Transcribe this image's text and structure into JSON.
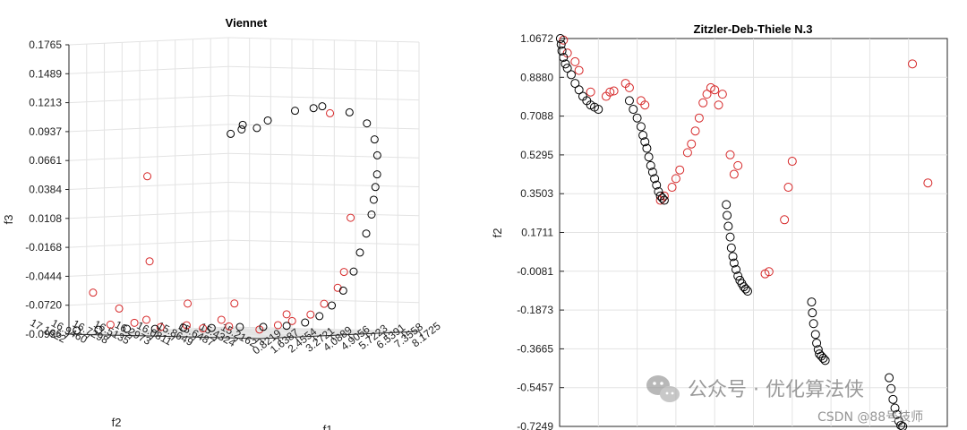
{
  "chart_data": [
    {
      "type": "scatter",
      "projection": "3d",
      "title": "Viennet",
      "xlabel": "f1",
      "ylabel": "f2",
      "zlabel": "f3",
      "grid": true,
      "x_ticks": [
        "0.8219",
        "1.6387",
        "2.4554",
        "3.2721",
        "4.0889",
        "4.9056",
        "5.7223",
        "6.5391",
        "7.3558",
        "8.1725"
      ],
      "y_ticks": [
        "15.2162",
        "15.4324",
        "15.6487",
        "15.8649",
        "16.0811",
        "16.2973",
        "16.5135",
        "16.7298",
        "16.9460",
        "17.1622"
      ],
      "z_ticks": [
        "-0.0996",
        "-0.0720",
        "-0.0444",
        "-0.0168",
        "0.0108",
        "0.0384",
        "0.0661",
        "0.0937",
        "0.1213",
        "0.1489",
        "0.1765"
      ],
      "xlim": [
        0.8219,
        8.1725
      ],
      "ylim": [
        15.2162,
        17.1622
      ],
      "zlim": [
        -0.0996,
        0.1765
      ],
      "series": [
        {
          "color": "#d62728",
          "points": [
            [
              1.1,
              16.8,
              -0.09
            ],
            [
              1.3,
              16.6,
              -0.088
            ],
            [
              1.6,
              16.4,
              -0.092
            ],
            [
              1.9,
              16.2,
              -0.09
            ],
            [
              2.2,
              16.1,
              -0.093
            ],
            [
              2.5,
              15.9,
              -0.091
            ],
            [
              3.0,
              15.7,
              -0.094
            ],
            [
              3.4,
              15.6,
              -0.09
            ],
            [
              1.2,
              17.0,
              -0.06
            ],
            [
              1.5,
              16.8,
              -0.075
            ],
            [
              2.4,
              16.3,
              -0.07
            ],
            [
              2.0,
              16.6,
              -0.03
            ],
            [
              3.2,
              16.0,
              -0.07
            ],
            [
              2.8,
              16.8,
              0.05
            ],
            [
              5.8,
              15.6,
              0.11
            ],
            [
              6.3,
              15.5,
              0.01
            ],
            [
              3.6,
              15.5,
              -0.086
            ],
            [
              4.0,
              15.4,
              -0.08
            ],
            [
              4.4,
              15.35,
              -0.07
            ],
            [
              4.8,
              15.3,
              -0.055
            ],
            [
              5.0,
              15.28,
              -0.04
            ],
            [
              1.4,
              16.5,
              -0.085
            ],
            [
              2.6,
              16.0,
              -0.085
            ],
            [
              3.8,
              15.6,
              -0.08
            ]
          ]
        },
        {
          "color": "#000000",
          "points": [
            [
              0.9,
              17.1,
              -0.096
            ],
            [
              1.0,
              16.9,
              -0.095
            ],
            [
              1.4,
              16.7,
              -0.094
            ],
            [
              1.8,
              16.5,
              -0.094
            ],
            [
              2.2,
              16.3,
              -0.093
            ],
            [
              2.6,
              16.1,
              -0.093
            ],
            [
              3.0,
              15.9,
              -0.092
            ],
            [
              3.4,
              15.75,
              -0.092
            ],
            [
              3.8,
              15.6,
              -0.091
            ],
            [
              4.2,
              15.5,
              -0.088
            ],
            [
              4.5,
              15.42,
              -0.082
            ],
            [
              4.8,
              15.36,
              -0.072
            ],
            [
              5.1,
              15.31,
              -0.058
            ],
            [
              5.4,
              15.27,
              -0.04
            ],
            [
              5.6,
              15.25,
              -0.022
            ],
            [
              5.8,
              15.23,
              -0.004
            ],
            [
              6.0,
              15.22,
              0.014
            ],
            [
              6.1,
              15.22,
              0.028
            ],
            [
              6.2,
              15.225,
              0.04
            ],
            [
              6.3,
              15.23,
              0.052
            ],
            [
              6.4,
              15.25,
              0.07
            ],
            [
              6.5,
              15.3,
              0.085
            ],
            [
              6.6,
              15.4,
              0.1
            ],
            [
              6.7,
              15.6,
              0.11
            ],
            [
              6.8,
              15.9,
              0.115
            ],
            [
              6.9,
              16.2,
              0.11
            ],
            [
              7.0,
              16.5,
              0.1
            ],
            [
              7.2,
              16.8,
              0.095
            ],
            [
              7.6,
              16.9,
              0.09
            ],
            [
              8.0,
              17.1,
              0.085
            ],
            [
              7.4,
              16.7,
              0.092
            ],
            [
              6.85,
              16.0,
              0.113
            ]
          ]
        }
      ]
    },
    {
      "type": "scatter",
      "title": "Zitzler-Deb-Thiele N.3",
      "xlabel": "",
      "ylabel": "f2",
      "grid": true,
      "xlim": [
        0,
        1
      ],
      "ylim": [
        -0.7249,
        1.0672
      ],
      "y_ticks": [
        "-0.7249",
        "-0.5457",
        "-0.3665",
        "-0.1873",
        "-0.0081",
        "0.1711",
        "0.3503",
        "0.5295",
        "0.7088",
        "0.8880",
        "1.0672"
      ],
      "series": [
        {
          "color": "#d62728",
          "points": [
            [
              0.01,
              1.06
            ],
            [
              0.02,
              1.0
            ],
            [
              0.04,
              0.96
            ],
            [
              0.05,
              0.92
            ],
            [
              0.08,
              0.82
            ],
            [
              0.12,
              0.8
            ],
            [
              0.13,
              0.82
            ],
            [
              0.14,
              0.825
            ],
            [
              0.17,
              0.86
            ],
            [
              0.18,
              0.84
            ],
            [
              0.21,
              0.78
            ],
            [
              0.22,
              0.76
            ],
            [
              0.26,
              0.32
            ],
            [
              0.27,
              0.34
            ],
            [
              0.29,
              0.38
            ],
            [
              0.3,
              0.42
            ],
            [
              0.31,
              0.46
            ],
            [
              0.33,
              0.54
            ],
            [
              0.34,
              0.58
            ],
            [
              0.35,
              0.64
            ],
            [
              0.36,
              0.7
            ],
            [
              0.37,
              0.77
            ],
            [
              0.38,
              0.81
            ],
            [
              0.39,
              0.84
            ],
            [
              0.4,
              0.83
            ],
            [
              0.41,
              0.76
            ],
            [
              0.42,
              0.81
            ],
            [
              0.44,
              0.53
            ],
            [
              0.45,
              0.44
            ],
            [
              0.46,
              0.48
            ],
            [
              0.53,
              -0.02
            ],
            [
              0.54,
              -0.01
            ],
            [
              0.58,
              0.23
            ],
            [
              0.59,
              0.38
            ],
            [
              0.6,
              0.5
            ],
            [
              0.91,
              0.95
            ],
            [
              0.95,
              0.4
            ]
          ]
        },
        {
          "color": "#000000",
          "points": [
            [
              0.002,
              1.067
            ],
            [
              0.004,
              1.04
            ],
            [
              0.006,
              1.01
            ],
            [
              0.01,
              0.98
            ],
            [
              0.015,
              0.95
            ],
            [
              0.02,
              0.93
            ],
            [
              0.03,
              0.9
            ],
            [
              0.04,
              0.86
            ],
            [
              0.05,
              0.83
            ],
            [
              0.06,
              0.8
            ],
            [
              0.07,
              0.78
            ],
            [
              0.08,
              0.76
            ],
            [
              0.09,
              0.75
            ],
            [
              0.1,
              0.74
            ],
            [
              0.18,
              0.78
            ],
            [
              0.19,
              0.74
            ],
            [
              0.2,
              0.7
            ],
            [
              0.21,
              0.66
            ],
            [
              0.215,
              0.62
            ],
            [
              0.22,
              0.59
            ],
            [
              0.225,
              0.56
            ],
            [
              0.23,
              0.52
            ],
            [
              0.235,
              0.48
            ],
            [
              0.24,
              0.45
            ],
            [
              0.245,
              0.42
            ],
            [
              0.25,
              0.39
            ],
            [
              0.255,
              0.36
            ],
            [
              0.26,
              0.34
            ],
            [
              0.265,
              0.33
            ],
            [
              0.27,
              0.32
            ],
            [
              0.43,
              0.3
            ],
            [
              0.432,
              0.25
            ],
            [
              0.435,
              0.2
            ],
            [
              0.44,
              0.15
            ],
            [
              0.443,
              0.1
            ],
            [
              0.447,
              0.06
            ],
            [
              0.45,
              0.03
            ],
            [
              0.455,
              0.0
            ],
            [
              0.46,
              -0.03
            ],
            [
              0.465,
              -0.05
            ],
            [
              0.47,
              -0.065
            ],
            [
              0.475,
              -0.08
            ],
            [
              0.48,
              -0.09
            ],
            [
              0.485,
              -0.1
            ],
            [
              0.65,
              -0.15
            ],
            [
              0.652,
              -0.2
            ],
            [
              0.655,
              -0.25
            ],
            [
              0.66,
              -0.3
            ],
            [
              0.663,
              -0.34
            ],
            [
              0.667,
              -0.37
            ],
            [
              0.67,
              -0.39
            ],
            [
              0.675,
              -0.4
            ],
            [
              0.68,
              -0.41
            ],
            [
              0.685,
              -0.42
            ],
            [
              0.85,
              -0.5
            ],
            [
              0.855,
              -0.55
            ],
            [
              0.86,
              -0.6
            ],
            [
              0.865,
              -0.64
            ],
            [
              0.87,
              -0.67
            ],
            [
              0.875,
              -0.7
            ],
            [
              0.88,
              -0.72
            ],
            [
              0.885,
              -0.725
            ]
          ]
        }
      ]
    }
  ],
  "watermark": {
    "icon": "wechat-icon",
    "text": "公众号 · 优化算法侠",
    "credit": "CSDN @88号技师"
  }
}
